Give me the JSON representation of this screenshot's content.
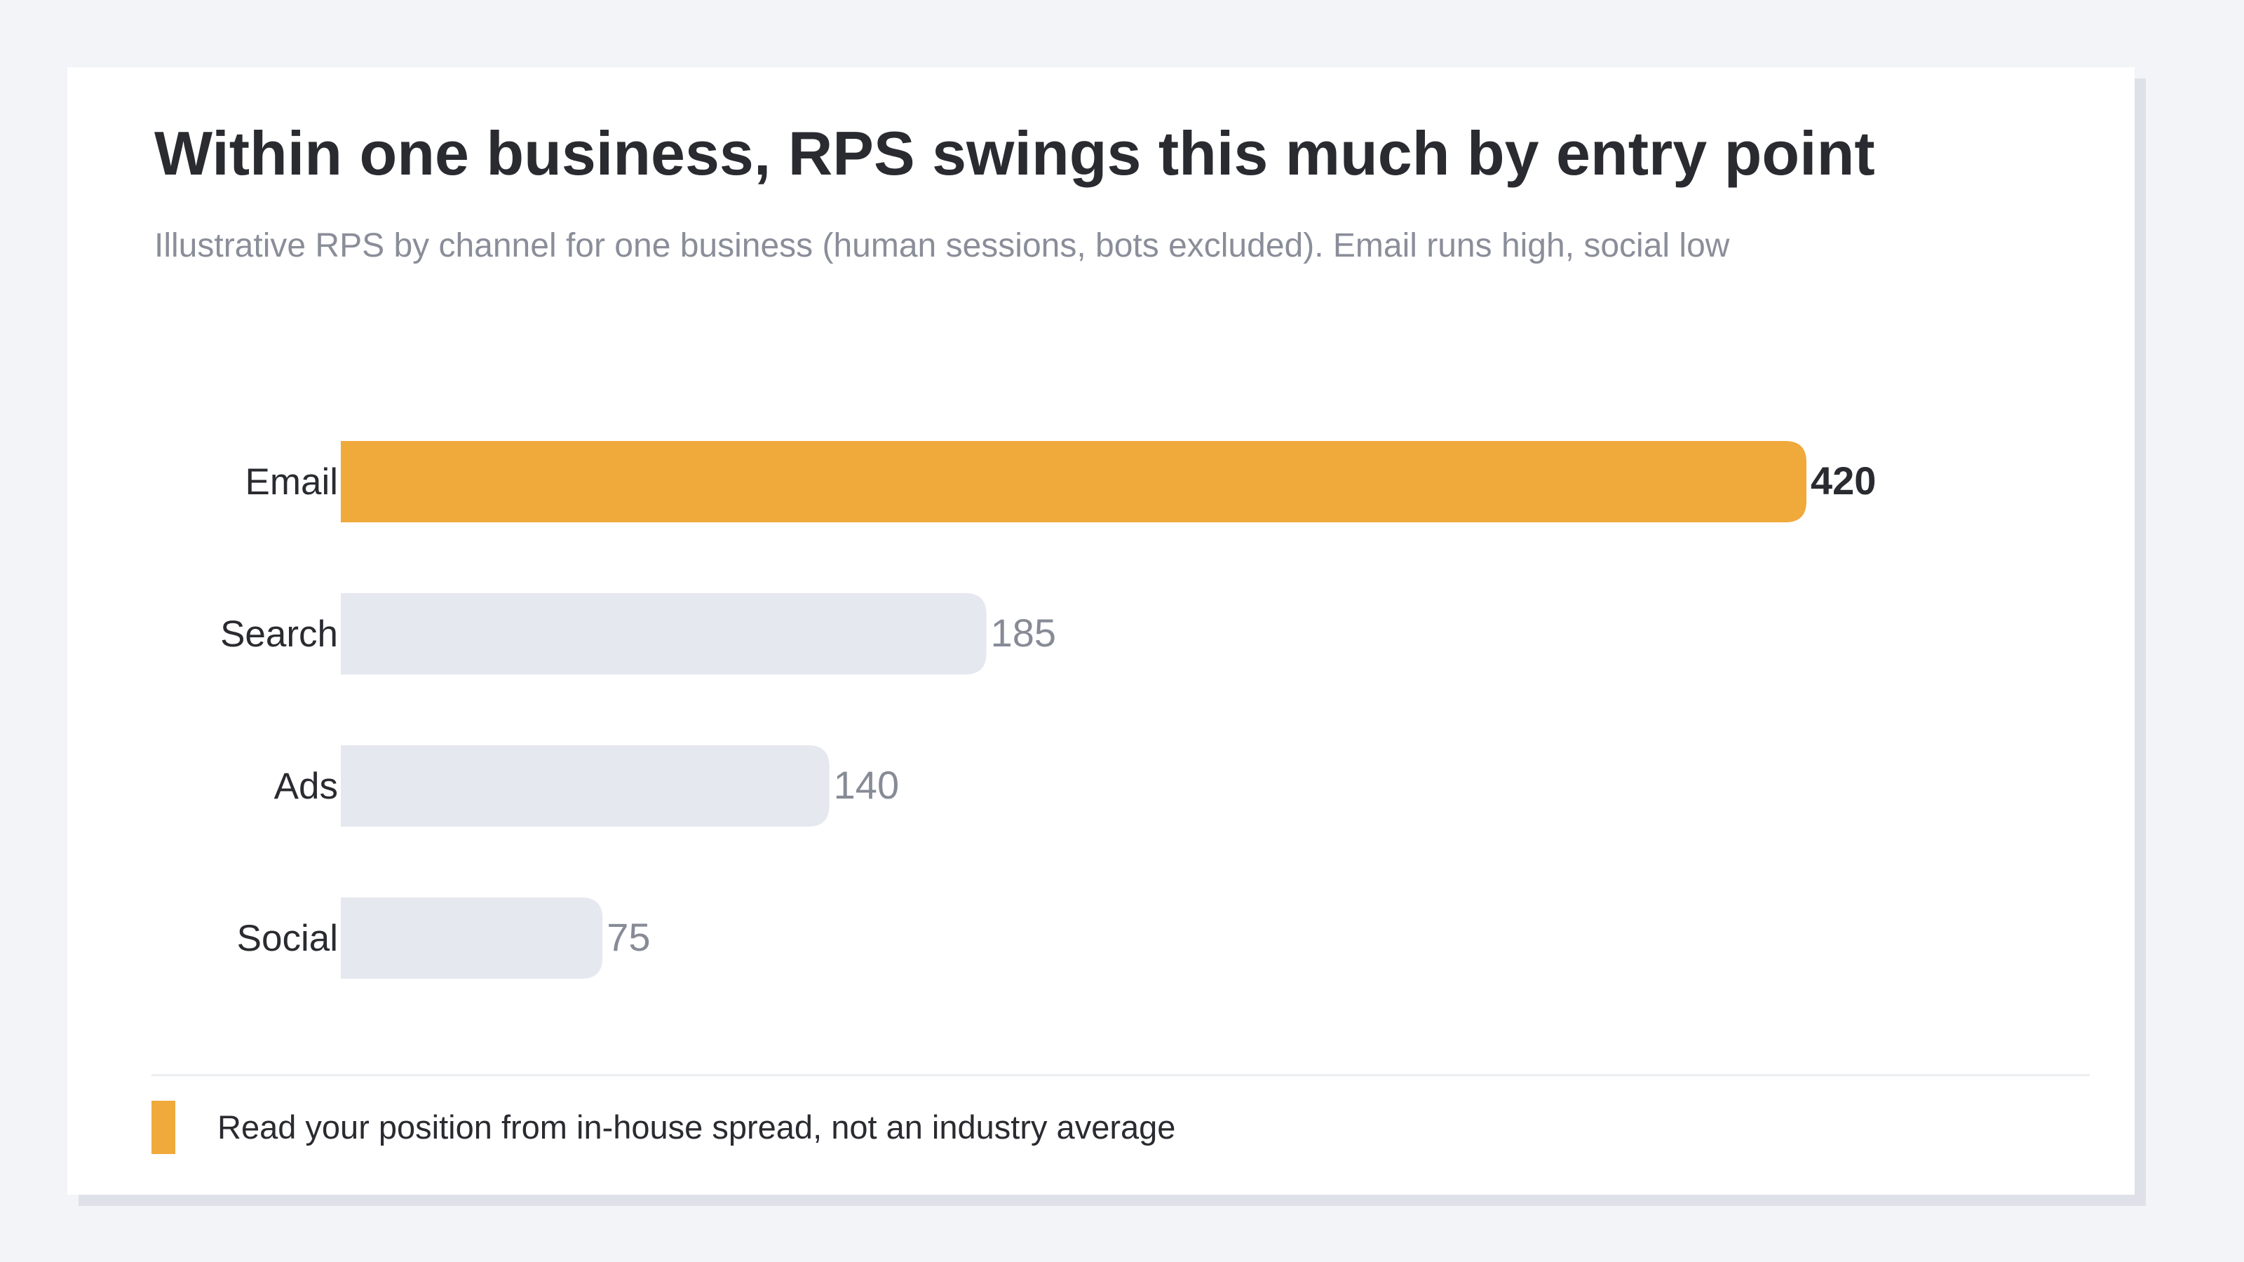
{
  "title": "Within one business, RPS swings this much by entry point",
  "subtitle": "Illustrative RPS by channel for one business (human sessions, bots excluded). Email runs high, social low",
  "legend": {
    "label": "Read your position from in-house spread, not an industry average"
  },
  "colors": {
    "highlight": "#f0a93b",
    "muted_bar": "#e6e8f0",
    "label_text": "#2a2b30",
    "muted_value": "#878b96"
  },
  "chart_data": {
    "type": "bar",
    "orientation": "horizontal",
    "title": "Within one business, RPS swings this much by entry point",
    "categories": [
      "Email",
      "Search",
      "Ads",
      "Social"
    ],
    "values": [
      420,
      185,
      140,
      75
    ],
    "highlight_index": 0,
    "xlim": [
      0,
      420
    ],
    "grid": false
  }
}
